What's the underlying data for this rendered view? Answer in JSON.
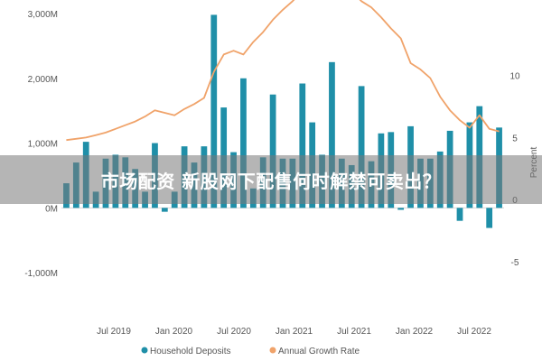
{
  "chart_data": {
    "type": "bar",
    "x_ticks": [
      "Jul 2019",
      "Jan 2020",
      "Jul 2020",
      "Jan 2021",
      "Jul 2021",
      "Jan 2022",
      "Jul 2022"
    ],
    "y_left_ticks": [
      "3,000M",
      "2,000M",
      "1,000M",
      "0M",
      "-1,000M"
    ],
    "y_left_range": [
      -1500,
      3000
    ],
    "y_right_ticks": [
      "10",
      "5",
      "0",
      "-5"
    ],
    "y_right_range": [
      -8.5,
      15
    ],
    "y_right_label": "Percent",
    "y_left_label": "",
    "series": [
      {
        "name": "Household Deposits",
        "kind": "bar",
        "color": "#1f8fa8",
        "values": [
          380,
          700,
          1020,
          250,
          760,
          820,
          780,
          600,
          250,
          1000,
          -60,
          250,
          950,
          700,
          950,
          2980,
          1550,
          860,
          2000,
          300,
          780,
          1750,
          760,
          760,
          1920,
          1320,
          820,
          2250,
          760,
          660,
          1880,
          720,
          1150,
          1170,
          -30,
          1260,
          760,
          760,
          870,
          1190,
          -200,
          1320,
          1570,
          -310,
          1240
        ]
      },
      {
        "name": "Annual Growth Rate",
        "kind": "line",
        "color": "#f0a36a",
        "values": [
          4.8,
          4.9,
          5.0,
          5.2,
          5.4,
          5.7,
          6.0,
          6.3,
          6.7,
          7.2,
          7.0,
          6.8,
          7.3,
          7.7,
          8.2,
          10.3,
          11.7,
          12.0,
          11.7,
          12.7,
          13.5,
          14.5,
          15.3,
          16.0,
          16.8,
          17.6,
          18.5,
          18.9,
          18.4,
          16.8,
          16.0,
          15.5,
          14.7,
          13.8,
          13.0,
          11.0,
          10.5,
          9.8,
          8.3,
          7.2,
          6.4,
          5.8,
          6.8,
          5.7,
          5.5
        ]
      }
    ],
    "legend": [
      "Household Deposits",
      "Annual Growth Rate"
    ],
    "legend_position": "bottom",
    "grid": false
  },
  "overlay": {
    "text": "市场配资 新股网下配售何时解禁可卖出？"
  }
}
